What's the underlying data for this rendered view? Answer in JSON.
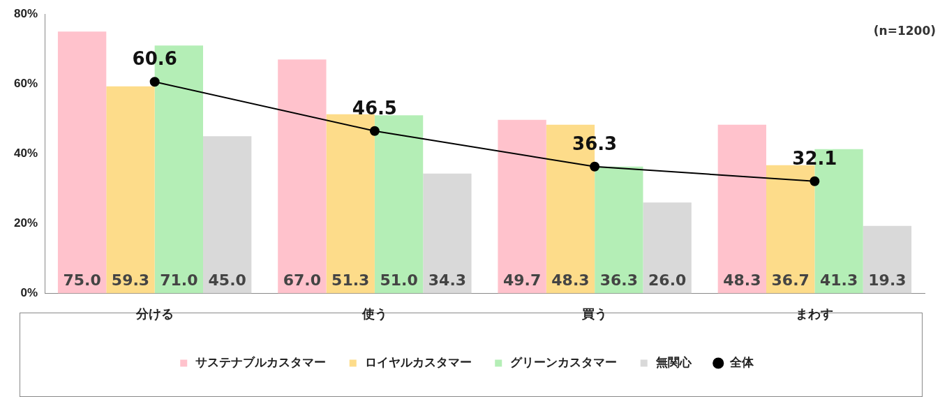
{
  "chart_data": {
    "type": "bar",
    "categories": [
      "分ける",
      "使う",
      "買う",
      "まわす"
    ],
    "series": [
      {
        "name": "サステナブルカスタマー",
        "color": "#ffc2cc",
        "values": [
          75.0,
          67.0,
          49.7,
          48.3
        ],
        "value_labels": [
          "75.0",
          "67.0",
          "49.7",
          "48.3"
        ]
      },
      {
        "name": "ロイヤルカスタマー",
        "color": "#fddc8a",
        "values": [
          59.3,
          51.3,
          48.3,
          36.7
        ],
        "value_labels": [
          "59.3",
          "51.3",
          "48.3",
          "36.7"
        ]
      },
      {
        "name": "グリーンカスタマー",
        "color": "#b4eeb6",
        "values": [
          71.0,
          51.0,
          36.3,
          41.3
        ],
        "value_labels": [
          "71.0",
          "51.0",
          "36.3",
          "41.3"
        ]
      },
      {
        "name": "無関心",
        "color": "#d9d9d9",
        "values": [
          45.0,
          34.3,
          26.0,
          19.3
        ],
        "value_labels": [
          "45.0",
          "34.3",
          "26.0",
          "19.3"
        ]
      },
      {
        "name": "全体",
        "type": "line",
        "color": "#000000",
        "values": [
          60.6,
          46.5,
          36.3,
          32.1
        ],
        "value_labels": [
          "60.6",
          "46.5",
          "36.3",
          "32.1"
        ]
      }
    ],
    "ylim": [
      0,
      80
    ],
    "yticks": [
      {
        "value": 0,
        "label": "0%"
      },
      {
        "value": 20,
        "label": "20%"
      },
      {
        "value": 40,
        "label": "40%"
      },
      {
        "value": 60,
        "label": "60%"
      },
      {
        "value": 80,
        "label": "80%"
      }
    ],
    "grid": false,
    "legend": "bottom",
    "marker": "circle",
    "line_style": "solid",
    "annotations": [
      "(n=1200)"
    ]
  }
}
